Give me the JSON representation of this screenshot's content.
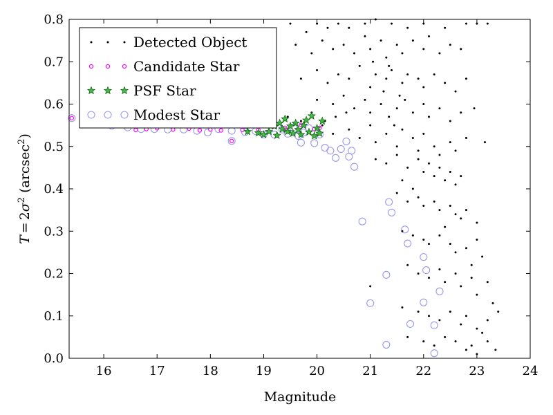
{
  "chart_data": {
    "type": "scatter",
    "title": "",
    "xlabel": "Magnitude",
    "ylabel": "T = 2σ² (arcsec²)",
    "ylabel_parts": {
      "lhs": "T",
      "eq": "=",
      "two": "2",
      "sigma": "σ",
      "sup2": "2",
      "unit_open": "(arcsec",
      "unit_sup": "2",
      "unit_close": ")"
    },
    "xlim": [
      15.35,
      24
    ],
    "ylim": [
      0,
      0.8
    ],
    "grid": false,
    "legend_position": "top-left",
    "xticks": [
      "16",
      "17",
      "18",
      "19",
      "20",
      "21",
      "22",
      "23",
      "24"
    ],
    "yticks": [
      "0.0",
      "0.1",
      "0.2",
      "0.3",
      "0.4",
      "0.5",
      "0.6",
      "0.7",
      "0.8"
    ],
    "series": [
      {
        "name": "Detected Object",
        "color": "#000000",
        "marker": "dot",
        "points": [
          [
            19.5,
            0.79
          ],
          [
            19.8,
            0.77
          ],
          [
            20.0,
            0.79
          ],
          [
            20.2,
            0.78
          ],
          [
            20.4,
            0.79
          ],
          [
            20.6,
            0.78
          ],
          [
            20.9,
            0.79
          ],
          [
            21.1,
            0.8
          ],
          [
            21.4,
            0.79
          ],
          [
            21.7,
            0.78
          ],
          [
            22.0,
            0.79
          ],
          [
            22.4,
            0.78
          ],
          [
            22.8,
            0.79
          ],
          [
            23.0,
            0.79
          ],
          [
            23.2,
            0.79
          ],
          [
            19.6,
            0.74
          ],
          [
            19.9,
            0.72
          ],
          [
            20.1,
            0.75
          ],
          [
            20.3,
            0.73
          ],
          [
            20.5,
            0.74
          ],
          [
            20.7,
            0.72
          ],
          [
            20.9,
            0.76
          ],
          [
            21.0,
            0.73
          ],
          [
            21.2,
            0.75
          ],
          [
            21.3,
            0.71
          ],
          [
            21.5,
            0.74
          ],
          [
            21.6,
            0.72
          ],
          [
            21.8,
            0.75
          ],
          [
            22.0,
            0.73
          ],
          [
            22.1,
            0.76
          ],
          [
            22.3,
            0.72
          ],
          [
            22.5,
            0.74
          ],
          [
            22.7,
            0.73
          ],
          [
            21.05,
            0.7
          ],
          [
            21.35,
            0.69
          ],
          [
            19.7,
            0.66
          ],
          [
            20.0,
            0.68
          ],
          [
            20.2,
            0.65
          ],
          [
            20.4,
            0.67
          ],
          [
            20.6,
            0.66
          ],
          [
            20.8,
            0.69
          ],
          [
            21.0,
            0.64
          ],
          [
            21.1,
            0.67
          ],
          [
            21.3,
            0.66
          ],
          [
            21.4,
            0.68
          ],
          [
            21.6,
            0.65
          ],
          [
            21.7,
            0.67
          ],
          [
            21.9,
            0.66
          ],
          [
            22.0,
            0.64
          ],
          [
            22.2,
            0.67
          ],
          [
            22.4,
            0.65
          ],
          [
            22.6,
            0.63
          ],
          [
            22.8,
            0.66
          ],
          [
            21.55,
            0.62
          ],
          [
            21.25,
            0.63
          ],
          [
            20.0,
            0.61
          ],
          [
            20.3,
            0.6
          ],
          [
            20.5,
            0.62
          ],
          [
            20.7,
            0.59
          ],
          [
            20.9,
            0.61
          ],
          [
            21.0,
            0.58
          ],
          [
            21.2,
            0.6
          ],
          [
            21.35,
            0.57
          ],
          [
            21.5,
            0.59
          ],
          [
            21.65,
            0.61
          ],
          [
            21.8,
            0.58
          ],
          [
            22.0,
            0.6
          ],
          [
            22.1,
            0.57
          ],
          [
            22.3,
            0.59
          ],
          [
            22.5,
            0.56
          ],
          [
            22.7,
            0.58
          ],
          [
            22.95,
            0.59
          ],
          [
            21.45,
            0.55
          ],
          [
            20.1,
            0.55
          ],
          [
            20.3,
            0.53
          ],
          [
            20.6,
            0.54
          ],
          [
            20.8,
            0.52
          ],
          [
            21.0,
            0.55
          ],
          [
            21.1,
            0.51
          ],
          [
            21.3,
            0.53
          ],
          [
            21.5,
            0.5
          ],
          [
            21.6,
            0.54
          ],
          [
            21.8,
            0.52
          ],
          [
            21.9,
            0.49
          ],
          [
            22.0,
            0.53
          ],
          [
            22.2,
            0.5
          ],
          [
            22.3,
            0.48
          ],
          [
            22.5,
            0.51
          ],
          [
            22.6,
            0.49
          ],
          [
            22.8,
            0.52
          ],
          [
            23.15,
            0.51
          ],
          [
            21.1,
            0.47
          ],
          [
            21.3,
            0.46
          ],
          [
            21.5,
            0.48
          ],
          [
            21.7,
            0.45
          ],
          [
            21.9,
            0.47
          ],
          [
            22.0,
            0.44
          ],
          [
            22.1,
            0.46
          ],
          [
            22.2,
            0.43
          ],
          [
            22.3,
            0.45
          ],
          [
            22.4,
            0.42
          ],
          [
            22.5,
            0.44
          ],
          [
            22.6,
            0.41
          ],
          [
            22.7,
            0.43
          ],
          [
            21.6,
            0.42
          ],
          [
            21.8,
            0.4
          ],
          [
            21.5,
            0.39
          ],
          [
            21.7,
            0.37
          ],
          [
            21.9,
            0.38
          ],
          [
            22.0,
            0.36
          ],
          [
            22.2,
            0.37
          ],
          [
            22.3,
            0.35
          ],
          [
            22.5,
            0.36
          ],
          [
            22.6,
            0.34
          ],
          [
            22.7,
            0.33
          ],
          [
            22.8,
            0.35
          ],
          [
            23.0,
            0.32
          ],
          [
            22.4,
            0.31
          ],
          [
            21.6,
            0.3
          ],
          [
            21.8,
            0.29
          ],
          [
            22.0,
            0.28
          ],
          [
            22.1,
            0.27
          ],
          [
            22.3,
            0.29
          ],
          [
            22.5,
            0.27
          ],
          [
            22.6,
            0.25
          ],
          [
            22.8,
            0.26
          ],
          [
            23.0,
            0.28
          ],
          [
            23.1,
            0.24
          ],
          [
            22.9,
            0.22
          ],
          [
            21.0,
            0.17
          ],
          [
            21.7,
            0.22
          ],
          [
            21.9,
            0.2
          ],
          [
            22.1,
            0.19
          ],
          [
            22.3,
            0.21
          ],
          [
            22.4,
            0.18
          ],
          [
            22.6,
            0.2
          ],
          [
            22.7,
            0.17
          ],
          [
            22.9,
            0.19
          ],
          [
            23.0,
            0.15
          ],
          [
            23.2,
            0.18
          ],
          [
            23.3,
            0.13
          ],
          [
            21.6,
            0.12
          ],
          [
            21.9,
            0.11
          ],
          [
            22.1,
            0.1
          ],
          [
            22.3,
            0.09
          ],
          [
            22.5,
            0.11
          ],
          [
            22.7,
            0.08
          ],
          [
            22.8,
            0.1
          ],
          [
            23.0,
            0.07
          ],
          [
            23.2,
            0.09
          ],
          [
            23.4,
            0.11
          ],
          [
            21.7,
            0.05
          ],
          [
            22.0,
            0.04
          ],
          [
            22.2,
            0.03
          ],
          [
            22.4,
            0.05
          ],
          [
            22.6,
            0.04
          ],
          [
            22.8,
            0.02
          ],
          [
            22.9,
            0.03
          ],
          [
            23.0,
            0.01
          ],
          [
            23.2,
            0.04
          ],
          [
            23.35,
            0.02
          ],
          [
            23.1,
            0.06
          ],
          [
            18.8,
            0.55
          ],
          [
            19.05,
            0.56
          ],
          [
            19.2,
            0.55
          ],
          [
            19.45,
            0.57
          ],
          [
            19.7,
            0.56
          ],
          [
            19.9,
            0.58
          ],
          [
            20.15,
            0.56
          ],
          [
            20.35,
            0.57
          ],
          [
            20.55,
            0.58
          ]
        ]
      },
      {
        "name": "Candidate Star",
        "color": "#ff00ff",
        "marker": "small-circle",
        "points": [
          [
            15.4,
            0.567
          ],
          [
            16.1,
            0.549
          ],
          [
            16.6,
            0.539
          ],
          [
            16.8,
            0.541
          ],
          [
            17.0,
            0.543
          ],
          [
            17.3,
            0.54
          ],
          [
            17.6,
            0.542
          ],
          [
            17.8,
            0.538
          ],
          [
            18.0,
            0.54
          ],
          [
            18.2,
            0.538
          ],
          [
            18.4,
            0.513
          ],
          [
            18.6,
            0.539
          ],
          [
            18.9,
            0.539
          ],
          [
            19.4,
            0.544
          ],
          [
            19.7,
            0.551
          ],
          [
            19.95,
            0.541
          ],
          [
            20.05,
            0.544
          ]
        ]
      },
      {
        "name": "PSF Star",
        "color": "#22aa22",
        "marker": "star",
        "points": [
          [
            18.7,
            0.535
          ],
          [
            18.9,
            0.532
          ],
          [
            19.0,
            0.528
          ],
          [
            19.1,
            0.535
          ],
          [
            19.2,
            0.548
          ],
          [
            19.25,
            0.526
          ],
          [
            19.3,
            0.555
          ],
          [
            19.35,
            0.541
          ],
          [
            19.4,
            0.565
          ],
          [
            19.45,
            0.535
          ],
          [
            19.5,
            0.548
          ],
          [
            19.55,
            0.531
          ],
          [
            19.6,
            0.555
          ],
          [
            19.65,
            0.54
          ],
          [
            19.7,
            0.528
          ],
          [
            19.75,
            0.55
          ],
          [
            19.8,
            0.562
          ],
          [
            19.85,
            0.534
          ],
          [
            19.9,
            0.572
          ],
          [
            19.95,
            0.525
          ],
          [
            20.0,
            0.543
          ],
          [
            20.05,
            0.531
          ],
          [
            20.1,
            0.56
          ]
        ]
      },
      {
        "name": "Modest Star",
        "color": "#9999ee",
        "marker": "open-circle",
        "points": [
          [
            15.4,
            0.567
          ],
          [
            15.7,
            0.56
          ],
          [
            15.95,
            0.553
          ],
          [
            16.15,
            0.549
          ],
          [
            16.45,
            0.545
          ],
          [
            16.7,
            0.541
          ],
          [
            16.95,
            0.541
          ],
          [
            17.2,
            0.54
          ],
          [
            17.5,
            0.54
          ],
          [
            17.75,
            0.537
          ],
          [
            17.95,
            0.533
          ],
          [
            18.15,
            0.541
          ],
          [
            18.4,
            0.537
          ],
          [
            18.4,
            0.513
          ],
          [
            18.65,
            0.534
          ],
          [
            18.85,
            0.536
          ],
          [
            19.0,
            0.528
          ],
          [
            19.2,
            0.528
          ],
          [
            19.35,
            0.54
          ],
          [
            19.45,
            0.53
          ],
          [
            19.55,
            0.545
          ],
          [
            19.65,
            0.525
          ],
          [
            19.75,
            0.533
          ],
          [
            19.85,
            0.543
          ],
          [
            19.95,
            0.508
          ],
          [
            20.05,
            0.528
          ],
          [
            20.15,
            0.497
          ],
          [
            20.25,
            0.49
          ],
          [
            20.35,
            0.473
          ],
          [
            20.45,
            0.494
          ],
          [
            20.55,
            0.512
          ],
          [
            20.6,
            0.476
          ],
          [
            20.65,
            0.49
          ],
          [
            20.7,
            0.452
          ],
          [
            19.7,
            0.509
          ],
          [
            20.85,
            0.323
          ],
          [
            21.0,
            0.13
          ],
          [
            21.35,
            0.369
          ],
          [
            21.4,
            0.344
          ],
          [
            21.3,
            0.197
          ],
          [
            21.3,
            0.032
          ],
          [
            21.65,
            0.304
          ],
          [
            21.7,
            0.271
          ],
          [
            21.75,
            0.081
          ],
          [
            22.0,
            0.239
          ],
          [
            22.05,
            0.208
          ],
          [
            22.0,
            0.132
          ],
          [
            22.2,
            0.078
          ],
          [
            22.3,
            0.158
          ],
          [
            22.2,
            0.012
          ]
        ]
      }
    ]
  }
}
